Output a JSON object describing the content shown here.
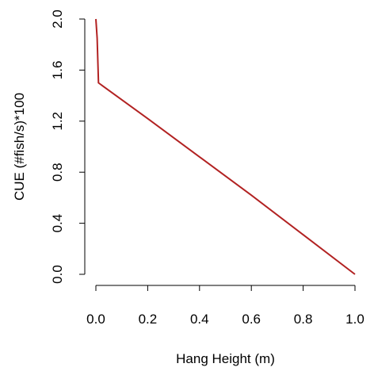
{
  "chart_data": {
    "type": "line",
    "title": "",
    "xlabel": "Hang Height (m)",
    "ylabel": "CUE (#fish/s)*100",
    "xlim": [
      0.0,
      1.0
    ],
    "ylim": [
      0.0,
      2.0
    ],
    "x_ticks": [
      "0.0",
      "0.2",
      "0.4",
      "0.6",
      "0.8",
      "1.0"
    ],
    "y_ticks": [
      "0.0",
      "0.4",
      "0.8",
      "1.2",
      "1.6",
      "2.0"
    ],
    "grid": false,
    "legend": "none",
    "series": [
      {
        "color": "#b22222",
        "x": [
          0.0,
          0.005,
          0.01,
          0.2,
          0.4,
          0.6,
          0.8,
          1.0
        ],
        "y": [
          2.0,
          1.85,
          1.5,
          1.22,
          0.92,
          0.62,
          0.31,
          0.0
        ]
      }
    ]
  }
}
